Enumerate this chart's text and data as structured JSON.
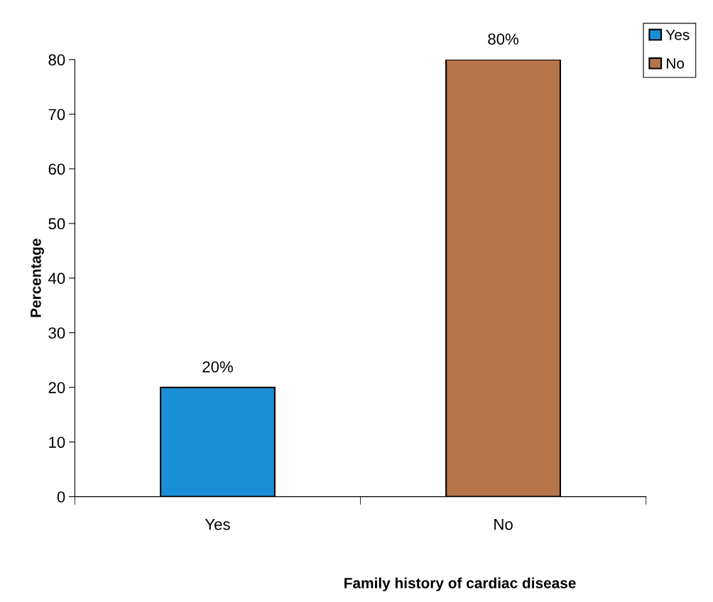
{
  "chart_data": {
    "type": "bar",
    "xlabel": "Family history of cardiac disease",
    "ylabel": "Percentage",
    "categories": [
      "Yes",
      "No"
    ],
    "series": [
      {
        "name": "Yes",
        "color": "#1a8fd8",
        "values": [
          20,
          null
        ],
        "value_labels": [
          "20%",
          null
        ]
      },
      {
        "name": "No",
        "color": "#b5744a",
        "values": [
          null,
          80
        ],
        "value_labels": [
          null,
          "80%"
        ]
      }
    ],
    "ylim": [
      0,
      80
    ],
    "yticks": [
      0,
      10,
      20,
      30,
      40,
      50,
      60,
      70,
      80
    ],
    "grid": false,
    "legend": "top right"
  }
}
